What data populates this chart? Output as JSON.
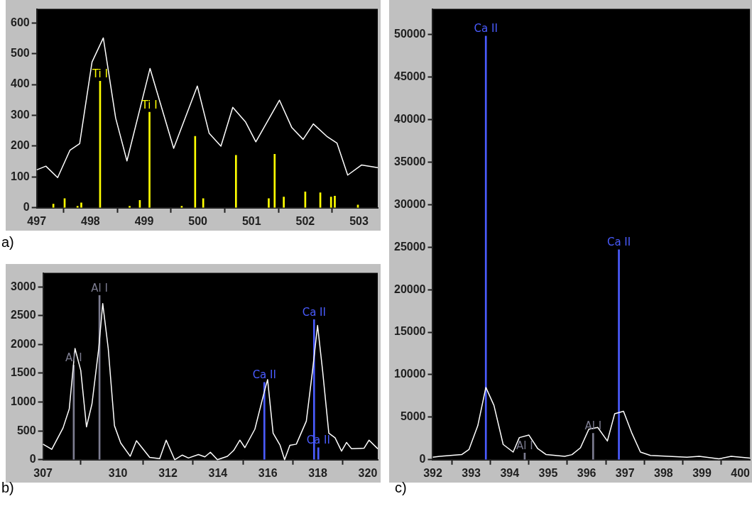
{
  "chart_data": [
    {
      "type": "line",
      "title": "a)",
      "xlim": [
        497,
        503.35
      ],
      "xticks": [
        497,
        498,
        499,
        500,
        501,
        502,
        503
      ],
      "ylim": [
        0,
        645
      ],
      "yticks": [
        0,
        100,
        200,
        300,
        400,
        500,
        600
      ],
      "grid": false,
      "series": [
        {
          "type": "line",
          "color": "#ffffff",
          "x": [
            497,
            497.17,
            497.39,
            497.62,
            497.8,
            498.03,
            498.24,
            498.47,
            498.68,
            499.11,
            499.55,
            499.99,
            500.21,
            500.43,
            500.65,
            500.89,
            501.08,
            501.52,
            501.75,
            501.96,
            502.15,
            502.4,
            502.59,
            502.79,
            503.05,
            503.35
          ],
          "values": [
            123,
            135,
            98,
            187,
            208,
            473,
            551,
            291,
            152,
            452,
            193,
            395,
            242,
            200,
            326,
            278,
            214,
            349,
            260,
            222,
            272,
            232,
            210,
            106,
            139,
            130
          ]
        },
        {
          "type": "bar",
          "color": "#ffff00",
          "x": [
            497.31,
            497.52,
            497.76,
            497.83,
            498.18,
            498.73,
            498.92,
            499.1,
            499.7,
            499.95,
            500.1,
            500.71,
            501.32,
            501.41,
            501.43,
            501.6,
            502.0,
            502.28,
            502.48,
            502.55,
            502.98
          ],
          "values": [
            12,
            30,
            5,
            16,
            411,
            5,
            24,
            310,
            5,
            232,
            30,
            170,
            30,
            null,
            174,
            35,
            52,
            49,
            35,
            38,
            9
          ]
        }
      ],
      "annotations": [
        {
          "text": "Ti I",
          "x": 498.18,
          "y": 411
        },
        {
          "text": "Ti I",
          "x": 499.1,
          "y": 310
        }
      ]
    },
    {
      "type": "line",
      "title": "b)",
      "xlim": [
        307,
        320.4
      ],
      "xticks": [
        307,
        310,
        312,
        314,
        316,
        318,
        320
      ],
      "ylim": [
        0,
        3240
      ],
      "yticks": [
        0,
        500,
        1000,
        1500,
        2000,
        2500,
        3000
      ],
      "grid": false,
      "series": [
        {
          "type": "line",
          "color": "#ffffff",
          "x": [
            307,
            307.35,
            307.8,
            308.05,
            308.28,
            308.51,
            308.74,
            308.96,
            309.23,
            309.39,
            309.61,
            309.86,
            310.11,
            310.49,
            310.74,
            311.27,
            311.67,
            311.93,
            312.27,
            312.57,
            312.82,
            313.22,
            313.48,
            313.7,
            313.98,
            314.38,
            314.63,
            314.88,
            315.08,
            315.48,
            315.84,
            315.99,
            316.21,
            316.49,
            316.67,
            316.88,
            317.14,
            317.54,
            317.79,
            317.99,
            318.19,
            318.44,
            318.69,
            318.95,
            319.15,
            319.35,
            319.85,
            320.05,
            320.4
          ],
          "values": [
            270,
            180,
            550,
            880,
            1930,
            1550,
            570,
            970,
            1930,
            2710,
            1930,
            590,
            290,
            60,
            330,
            40,
            20,
            340,
            0,
            80,
            30,
            90,
            50,
            130,
            0,
            60,
            160,
            340,
            210,
            530,
            1150,
            1390,
            460,
            250,
            0,
            250,
            270,
            670,
            1550,
            2330,
            1550,
            460,
            380,
            150,
            300,
            190,
            200,
            340,
            190
          ]
        },
        {
          "type": "bar",
          "colors": [
            "#7c7c90",
            "#7c7c90",
            "#4a5cff",
            "#4a5cff",
            "#4a5cff"
          ],
          "x": [
            308.23,
            309.26,
            315.86,
            317.85,
            318.02
          ],
          "values": [
            1640,
            2850,
            1340,
            2430,
            210
          ]
        }
      ],
      "annotations": [
        {
          "text": "Al I",
          "x": 308.23,
          "y": 1640
        },
        {
          "text": "Al I",
          "x": 309.26,
          "y": 2850
        },
        {
          "text": "Ca II",
          "x": 315.86,
          "y": 1340
        },
        {
          "text": "Ca II",
          "x": 317.85,
          "y": 2430
        },
        {
          "text": "Ca II",
          "x": 318.02,
          "y": 210
        }
      ]
    },
    {
      "type": "line",
      "title": "c)",
      "xlim": [
        392,
        400.25
      ],
      "xticks": [
        392,
        393,
        394,
        395,
        396,
        397,
        398,
        399,
        400
      ],
      "ylim": [
        0,
        53000
      ],
      "yticks": [
        0,
        5000,
        10000,
        15000,
        20000,
        25000,
        30000,
        35000,
        40000,
        45000,
        50000
      ],
      "grid": false,
      "series": [
        {
          "type": "line",
          "color": "#ffffff",
          "x": [
            392,
            392.18,
            392.75,
            392.94,
            393.17,
            393.38,
            393.59,
            393.83,
            394.09,
            394.25,
            394.5,
            394.73,
            394.95,
            395.43,
            395.62,
            395.84,
            396.06,
            396.29,
            396.54,
            396.73,
            396.96,
            397.18,
            397.4,
            397.66,
            398.61,
            398.93,
            399.44,
            399.76,
            400.25
          ],
          "values": [
            300,
            400,
            600,
            1200,
            4000,
            8500,
            6400,
            1800,
            900,
            2600,
            2900,
            1300,
            600,
            400,
            600,
            1400,
            3600,
            3800,
            2200,
            5400,
            5700,
            3100,
            900,
            500,
            300,
            400,
            100,
            400,
            200
          ]
        },
        {
          "type": "bar",
          "colors": [
            "#4a5cff",
            "#7c7c90",
            "#7c7c90",
            "#4a5cff"
          ],
          "x": [
            393.38,
            394.39,
            396.17,
            396.84
          ],
          "values": [
            49800,
            800,
            3100,
            24700
          ]
        }
      ],
      "annotations": [
        {
          "text": "Ca II",
          "x": 393.38,
          "y": 49800
        },
        {
          "text": "Ca II",
          "x": 396.84,
          "y": 24700
        },
        {
          "text": "Al I",
          "x": 394.39,
          "y": 800
        },
        {
          "text": "Al I",
          "x": 396.17,
          "y": 3100
        }
      ]
    }
  ]
}
